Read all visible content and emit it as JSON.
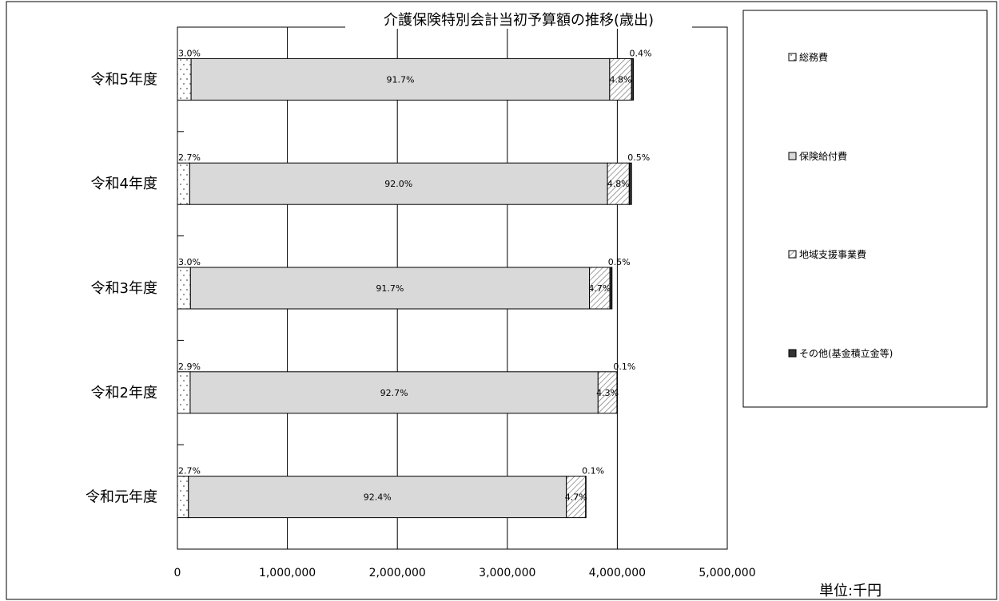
{
  "chart_data": {
    "type": "bar",
    "orientation": "horizontal",
    "stacked": true,
    "title": "介護保険特別会計当初予算額の推移(歳出)",
    "unit_label": "単位:千円",
    "categories": [
      "令和5年度",
      "令和4年度",
      "令和3年度",
      "令和2年度",
      "令和元年度"
    ],
    "xlim": [
      0,
      5000000
    ],
    "x_ticks": [
      0,
      1000000,
      2000000,
      3000000,
      4000000,
      5000000
    ],
    "x_tick_labels": [
      "0",
      "1,000,000",
      "2,000,000",
      "3,000,000",
      "4,000,000",
      "5,000,000"
    ],
    "grid": "vertical",
    "legend_position": "right",
    "series": [
      {
        "name": "総務費",
        "color": "#ffffff",
        "pattern": "dots",
        "values": [
          124500,
          111500,
          118500,
          116000,
          100000
        ],
        "labels": [
          "3.0%",
          "2.7%",
          "3.0%",
          "2.9%",
          "2.7%"
        ]
      },
      {
        "name": "保険給付費",
        "color": "#d9d9d9",
        "pattern": "solid",
        "values": [
          3806000,
          3799000,
          3628000,
          3709000,
          3437000
        ],
        "labels": [
          "91.7%",
          "92.0%",
          "91.7%",
          "92.7%",
          "92.4%"
        ]
      },
      {
        "name": "地域支援事業費",
        "color": "#ffffff",
        "pattern": "hatch",
        "values": [
          199000,
          198000,
          186000,
          172000,
          175000
        ],
        "labels": [
          "4.8%",
          "4.8%",
          "4.7%",
          "4.3%",
          "4.7%"
        ]
      },
      {
        "name": "その他(基金積立金等)",
        "color": "#333333",
        "pattern": "solid",
        "values": [
          16500,
          21000,
          19500,
          3000,
          3000
        ],
        "labels": [
          "0.4%",
          "0.5%",
          "0.5%",
          "0.1%",
          "0.1%"
        ]
      }
    ]
  }
}
